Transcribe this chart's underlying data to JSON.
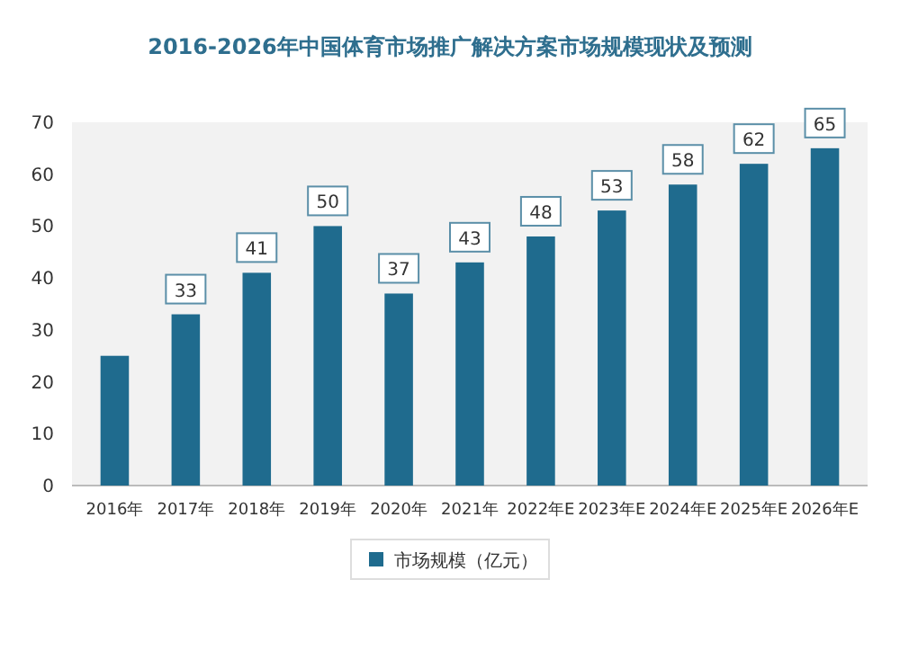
{
  "chart_data": {
    "type": "bar",
    "title": "2016-2026年中国体育市场推广解决方案市场规模现状及预测",
    "categories": [
      "2016年",
      "2017年",
      "2018年",
      "2019年",
      "2020年",
      "2021年",
      "2022年E",
      "2023年E",
      "2024年E",
      "2025年E",
      "2026年E"
    ],
    "series": [
      {
        "name": "市场规模（亿元）",
        "color": "#1f6b8e",
        "values": [
          25,
          33,
          41,
          50,
          37,
          43,
          48,
          53,
          58,
          62,
          65
        ],
        "value_labels": [
          null,
          "33",
          "41",
          "50",
          "37",
          "43",
          "48",
          "53",
          "58",
          "62",
          "65"
        ]
      }
    ],
    "ylim": [
      0,
      70
    ],
    "yticks": [
      0,
      10,
      20,
      30,
      40,
      50,
      60,
      70
    ],
    "grid": false,
    "legend": "bottom"
  }
}
